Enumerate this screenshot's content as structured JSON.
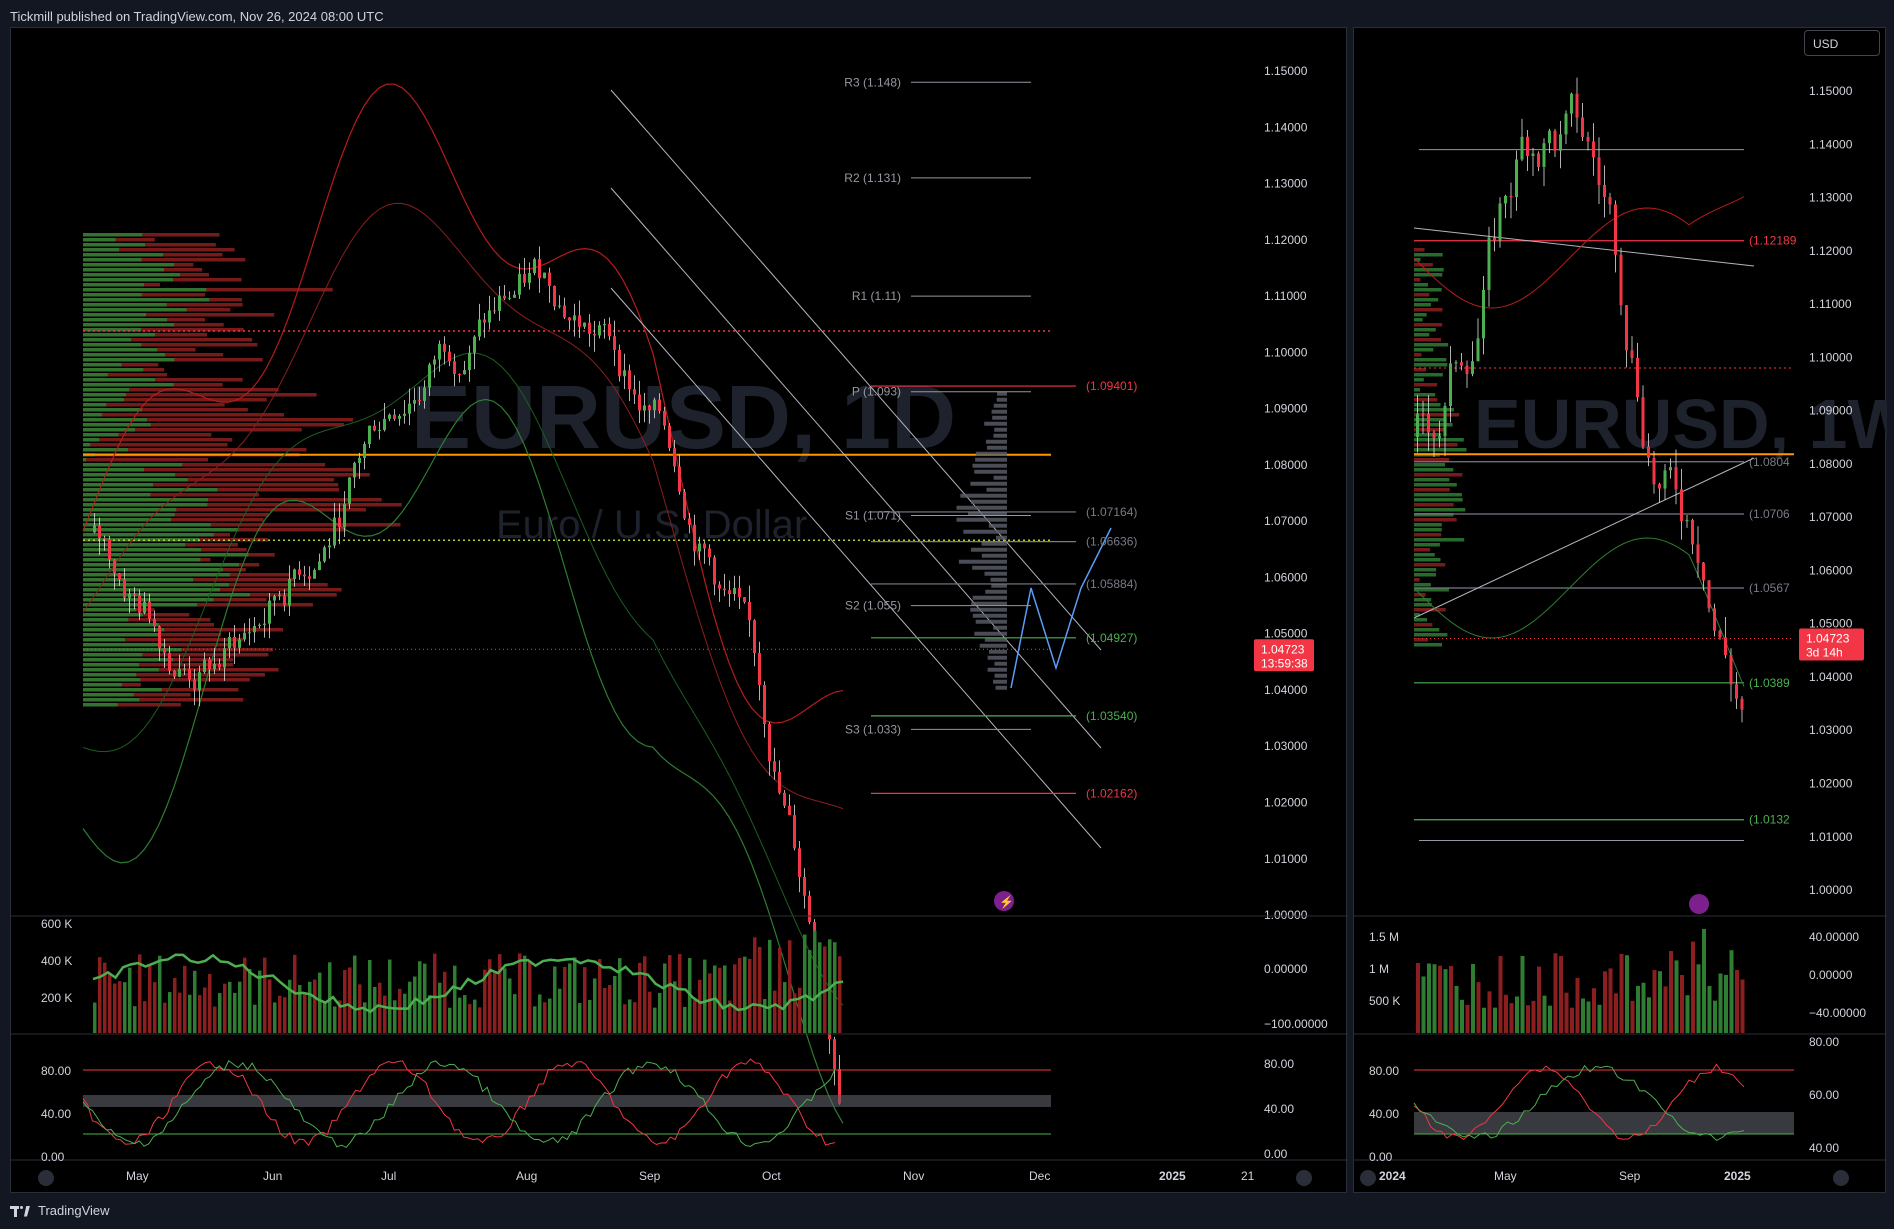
{
  "header": {
    "published": "Tickmill published on TradingView.com, Nov 26, 2024 08:00 UTC"
  },
  "footer": {
    "brand": "TradingView"
  },
  "currency_button": "USD",
  "main_chart": {
    "watermark_symbol": "EURUSD, 1D",
    "watermark_name": "Euro / U.S. Dollar",
    "price_axis": [
      "1.15000",
      "1.14000",
      "1.13000",
      "1.12000",
      "1.11000",
      "1.10000",
      "1.09000",
      "1.08000",
      "1.07000",
      "1.06000",
      "1.05000",
      "1.04000",
      "1.03000",
      "1.02000",
      "1.01000",
      "1.00000"
    ],
    "current_price": "1.04723",
    "countdown": "13:59:38",
    "pivots": [
      {
        "label": "R3 (1.148)",
        "price": 1.148
      },
      {
        "label": "R2 (1.131)",
        "price": 1.131
      },
      {
        "label": "R1 (1.11)",
        "price": 1.11
      },
      {
        "label": "P (1.093)",
        "price": 1.093
      },
      {
        "label": "S1 (1.071)",
        "price": 1.071
      },
      {
        "label": "S2 (1.055)",
        "price": 1.055
      },
      {
        "label": "S3 (1.033)",
        "price": 1.033
      }
    ],
    "levels": [
      {
        "label": "(1.09401)",
        "price": 1.09401,
        "color": "#f23645"
      },
      {
        "label": "(1.07164)",
        "price": 1.07164,
        "color": "#787b86"
      },
      {
        "label": "(1.06636)",
        "price": 1.06636,
        "color": "#787b86"
      },
      {
        "label": "(1.05884)",
        "price": 1.05884,
        "color": "#787b86"
      },
      {
        "label": "(1.04927)",
        "price": 1.04927,
        "color": "#4caf50"
      },
      {
        "label": "(1.03540)",
        "price": 1.0354,
        "color": "#4caf50"
      },
      {
        "label": "(1.02162)",
        "price": 1.02162,
        "color": "#f23645"
      }
    ],
    "time_axis": [
      "May",
      "Jun",
      "Jul",
      "Aug",
      "Sep",
      "Oct",
      "Nov",
      "Dec",
      "2025",
      "21"
    ],
    "volume_axis": [
      "600 K",
      "400 K",
      "200 K"
    ],
    "osc_axis": [
      "0.00000",
      "−100.00000"
    ],
    "stoch_axis": [
      "80.00",
      "40.00",
      "0.00"
    ],
    "stoch_right_axis": [
      "80.00",
      "40.00",
      "0.00"
    ],
    "top_right_value": "1.00000"
  },
  "side_chart": {
    "watermark_symbol": "EURUSD, 1W",
    "price_axis": [
      "1.15000",
      "1.14000",
      "1.13000",
      "1.12000",
      "1.11000",
      "1.10000",
      "1.09000",
      "1.08000",
      "1.07000",
      "1.06000",
      "1.05000",
      "1.04000",
      "1.03000",
      "1.02000",
      "1.01000",
      "1.00000"
    ],
    "current_price": "1.04723",
    "countdown": "3d 14h",
    "levels": [
      {
        "label": "(1.12189",
        "price": 1.12189,
        "color": "#f23645"
      },
      {
        "label": "(1.0804",
        "price": 1.0804,
        "color": "#787b86"
      },
      {
        "label": "(1.0706",
        "price": 1.0706,
        "color": "#787b86"
      },
      {
        "label": "(1.0567",
        "price": 1.0567,
        "color": "#787b86"
      },
      {
        "label": "(1.0389",
        "price": 1.0389,
        "color": "#4caf50"
      },
      {
        "label": "(1.0132",
        "price": 1.0132,
        "color": "#4caf50"
      }
    ],
    "time_axis": [
      "2024",
      "May",
      "Sep",
      "2025"
    ],
    "volume_axis": [
      "1.5 M",
      "1 M",
      "500 K"
    ],
    "osc_axis": [
      "40.00000",
      "0.00000",
      "−40.00000"
    ],
    "stoch_left_axis": [
      "80.00",
      "40.00",
      "0.00"
    ],
    "stoch_right_axis": [
      "80.00",
      "60.00",
      "40.00"
    ]
  },
  "colors": {
    "up": "#26a69a",
    "green": "#4caf50",
    "red": "#f23645",
    "orange": "#ff9800",
    "bg": "#000000"
  },
  "icons": [
    "tradingview-logo",
    "lightning-icon",
    "zoom-icon",
    "auto-icon"
  ]
}
